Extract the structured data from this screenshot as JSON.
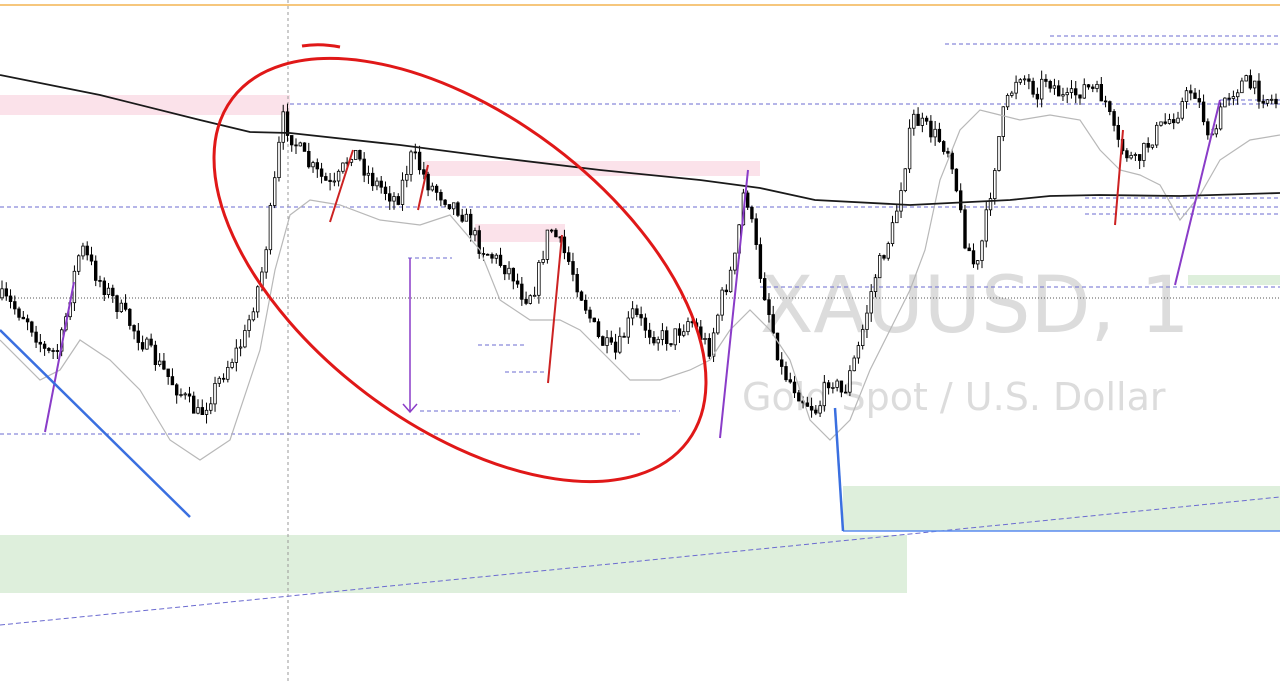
{
  "watermark": {
    "symbol": "XAUUSD, 1",
    "description": "Gold Spot / U.S. Dollar"
  },
  "chart_data": {
    "type": "candlestick",
    "title": "",
    "symbol": "XAUUSD",
    "timeframe": "1",
    "description": "Gold Spot / U.S. Dollar",
    "axes_visible": false,
    "grid": false,
    "legend": "none",
    "close_path_shape": [
      [
        0,
        0.52
      ],
      [
        0.02,
        0.56
      ],
      [
        0.035,
        0.63
      ],
      [
        0.045,
        0.62
      ],
      [
        0.058,
        0.46
      ],
      [
        0.062,
        0.42
      ],
      [
        0.075,
        0.48
      ],
      [
        0.095,
        0.55
      ],
      [
        0.12,
        0.64
      ],
      [
        0.145,
        0.72
      ],
      [
        0.155,
        0.75
      ],
      [
        0.175,
        0.66
      ],
      [
        0.19,
        0.6
      ],
      [
        0.205,
        0.46
      ],
      [
        0.215,
        0.28
      ],
      [
        0.22,
        0.17
      ],
      [
        0.228,
        0.21
      ],
      [
        0.24,
        0.26
      ],
      [
        0.26,
        0.31
      ],
      [
        0.275,
        0.23
      ],
      [
        0.29,
        0.29
      ],
      [
        0.31,
        0.33
      ],
      [
        0.322,
        0.24
      ],
      [
        0.335,
        0.3
      ],
      [
        0.36,
        0.35
      ],
      [
        0.375,
        0.42
      ],
      [
        0.4,
        0.47
      ],
      [
        0.41,
        0.52
      ],
      [
        0.418,
        0.5
      ],
      [
        0.43,
        0.38
      ],
      [
        0.445,
        0.45
      ],
      [
        0.468,
        0.6
      ],
      [
        0.482,
        0.63
      ],
      [
        0.495,
        0.55
      ],
      [
        0.51,
        0.59
      ],
      [
        0.525,
        0.6
      ],
      [
        0.54,
        0.56
      ],
      [
        0.555,
        0.62
      ],
      [
        0.565,
        0.52
      ],
      [
        0.575,
        0.45
      ],
      [
        0.583,
        0.3
      ],
      [
        0.595,
        0.47
      ],
      [
        0.612,
        0.66
      ],
      [
        0.63,
        0.72
      ],
      [
        0.64,
        0.74
      ],
      [
        0.65,
        0.67
      ],
      [
        0.66,
        0.71
      ],
      [
        0.672,
        0.62
      ],
      [
        0.685,
        0.48
      ],
      [
        0.7,
        0.38
      ],
      [
        0.715,
        0.17
      ],
      [
        0.735,
        0.21
      ],
      [
        0.745,
        0.24
      ],
      [
        0.755,
        0.4
      ],
      [
        0.765,
        0.47
      ],
      [
        0.773,
        0.36
      ],
      [
        0.785,
        0.17
      ],
      [
        0.798,
        0.08
      ],
      [
        0.812,
        0.12
      ],
      [
        0.82,
        0.09
      ],
      [
        0.835,
        0.14
      ],
      [
        0.85,
        0.11
      ],
      [
        0.865,
        0.13
      ],
      [
        0.875,
        0.22
      ],
      [
        0.89,
        0.26
      ],
      [
        0.905,
        0.2
      ],
      [
        0.922,
        0.16
      ],
      [
        0.935,
        0.11
      ],
      [
        0.95,
        0.22
      ],
      [
        0.96,
        0.13
      ],
      [
        0.975,
        0.1
      ],
      [
        0.985,
        0.12
      ],
      [
        1,
        0.14
      ]
    ]
  }
}
